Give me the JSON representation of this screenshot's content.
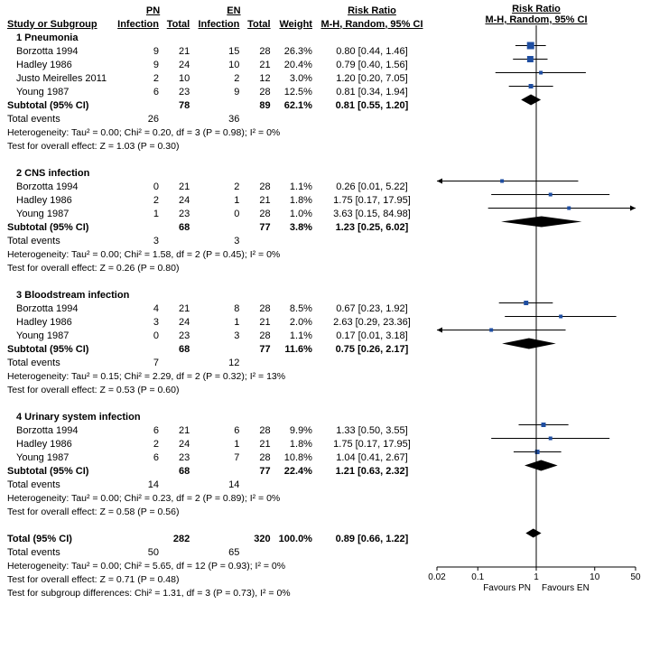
{
  "plot": {
    "xmin_log": -1.698970004,
    "xmax_log": 1.698970004,
    "ticks": [
      0.02,
      0.1,
      1,
      10,
      50
    ],
    "left_label": "Favours PN",
    "right_label": "Favours EN",
    "marker_color": "#1f4ea1",
    "diamond_color": "#000000",
    "line_color": "#000000"
  },
  "headers": {
    "study": "Study or Subgroup",
    "pn": "PN",
    "en": "EN",
    "inf": "Infection",
    "tot": "Total",
    "weight": "Weight",
    "rr": "Risk Ratio",
    "mh": "M-H, Random, 95% CI"
  },
  "groups": [
    {
      "title": "1 Pneumonia",
      "rows": [
        {
          "name": "Borzotta 1994",
          "pi": "9",
          "pt": "21",
          "ei": "15",
          "et": "28",
          "w": "26.3%",
          "rr": "0.80 [0.44, 1.46]",
          "pt_rr": 0.8,
          "lo": 0.44,
          "hi": 1.46,
          "ms": 8
        },
        {
          "name": "Hadley 1986",
          "pi": "9",
          "pt": "24",
          "ei": "10",
          "et": "21",
          "w": "20.4%",
          "rr": "0.79 [0.40, 1.56]",
          "pt_rr": 0.79,
          "lo": 0.4,
          "hi": 1.56,
          "ms": 7
        },
        {
          "name": "Justo Meirelles 2011",
          "pi": "2",
          "pt": "10",
          "ei": "2",
          "et": "12",
          "w": "3.0%",
          "rr": "1.20 [0.20, 7.05]",
          "pt_rr": 1.2,
          "lo": 0.2,
          "hi": 7.05,
          "ms": 4
        },
        {
          "name": "Young 1987",
          "pi": "6",
          "pt": "23",
          "ei": "9",
          "et": "28",
          "w": "12.5%",
          "rr": "0.81 [0.34, 1.94]",
          "pt_rr": 0.81,
          "lo": 0.34,
          "hi": 1.94,
          "ms": 5
        }
      ],
      "subtotal": {
        "label": "Subtotal (95% CI)",
        "pt": "78",
        "et": "89",
        "w": "62.1%",
        "rr": "0.81 [0.55, 1.20]",
        "pt_rr": 0.81,
        "lo": 0.55,
        "hi": 1.2
      },
      "events": {
        "label": "Total events",
        "pe": "26",
        "ee": "36"
      },
      "het": "Heterogeneity: Tau² = 0.00; Chi² = 0.20, df = 3 (P = 0.98); I² = 0%",
      "eff": "Test for overall effect: Z = 1.03 (P = 0.30)"
    },
    {
      "title": "2 CNS infection",
      "rows": [
        {
          "name": "Borzotta 1994",
          "pi": "0",
          "pt": "21",
          "ei": "2",
          "et": "28",
          "w": "1.1%",
          "rr": "0.26 [0.01, 5.22]",
          "pt_rr": 0.26,
          "lo": 0.01,
          "hi": 5.22,
          "ms": 4,
          "arrowL": true
        },
        {
          "name": "Hadley 1986",
          "pi": "2",
          "pt": "24",
          "ei": "1",
          "et": "21",
          "w": "1.8%",
          "rr": "1.75 [0.17, 17.95]",
          "pt_rr": 1.75,
          "lo": 0.17,
          "hi": 17.95,
          "ms": 4
        },
        {
          "name": "Young 1987",
          "pi": "1",
          "pt": "23",
          "ei": "0",
          "et": "28",
          "w": "1.0%",
          "rr": "3.63 [0.15, 84.98]",
          "pt_rr": 3.63,
          "lo": 0.15,
          "hi": 84.98,
          "ms": 4,
          "arrowR": true
        }
      ],
      "subtotal": {
        "label": "Subtotal (95% CI)",
        "pt": "68",
        "et": "77",
        "w": "3.8%",
        "rr": "1.23 [0.25, 6.02]",
        "pt_rr": 1.23,
        "lo": 0.25,
        "hi": 6.02
      },
      "events": {
        "label": "Total events",
        "pe": "3",
        "ee": "3"
      },
      "het": "Heterogeneity: Tau² = 0.00; Chi² = 1.58, df = 2 (P = 0.45); I² = 0%",
      "eff": "Test for overall effect: Z = 0.26 (P = 0.80)"
    },
    {
      "title": "3 Bloodstream infection",
      "rows": [
        {
          "name": "Borzotta 1994",
          "pi": "4",
          "pt": "21",
          "ei": "8",
          "et": "28",
          "w": "8.5%",
          "rr": "0.67 [0.23, 1.92]",
          "pt_rr": 0.67,
          "lo": 0.23,
          "hi": 1.92,
          "ms": 5
        },
        {
          "name": "Hadley 1986",
          "pi": "3",
          "pt": "24",
          "ei": "1",
          "et": "21",
          "w": "2.0%",
          "rr": "2.63 [0.29, 23.36]",
          "pt_rr": 2.63,
          "lo": 0.29,
          "hi": 23.36,
          "ms": 4
        },
        {
          "name": "Young 1987",
          "pi": "0",
          "pt": "23",
          "ei": "3",
          "et": "28",
          "w": "1.1%",
          "rr": "0.17 [0.01, 3.18]",
          "pt_rr": 0.17,
          "lo": 0.01,
          "hi": 3.18,
          "ms": 4,
          "arrowL": true
        }
      ],
      "subtotal": {
        "label": "Subtotal (95% CI)",
        "pt": "68",
        "et": "77",
        "w": "11.6%",
        "rr": "0.75 [0.26, 2.17]",
        "pt_rr": 0.75,
        "lo": 0.26,
        "hi": 2.17
      },
      "events": {
        "label": "Total events",
        "pe": "7",
        "ee": "12"
      },
      "het": "Heterogeneity: Tau² = 0.15; Chi² = 2.29, df = 2 (P = 0.32); I² = 13%",
      "eff": "Test for overall effect: Z = 0.53 (P = 0.60)"
    },
    {
      "title": "4 Urinary system infection",
      "rows": [
        {
          "name": "Borzotta 1994",
          "pi": "6",
          "pt": "21",
          "ei": "6",
          "et": "28",
          "w": "9.9%",
          "rr": "1.33 [0.50, 3.55]",
          "pt_rr": 1.33,
          "lo": 0.5,
          "hi": 3.55,
          "ms": 5
        },
        {
          "name": "Hadley 1986",
          "pi": "2",
          "pt": "24",
          "ei": "1",
          "et": "21",
          "w": "1.8%",
          "rr": "1.75 [0.17, 17.95]",
          "pt_rr": 1.75,
          "lo": 0.17,
          "hi": 17.95,
          "ms": 4
        },
        {
          "name": "Young 1987",
          "pi": "6",
          "pt": "23",
          "ei": "7",
          "et": "28",
          "w": "10.8%",
          "rr": "1.04 [0.41, 2.67]",
          "pt_rr": 1.04,
          "lo": 0.41,
          "hi": 2.67,
          "ms": 5
        }
      ],
      "subtotal": {
        "label": "Subtotal (95% CI)",
        "pt": "68",
        "et": "77",
        "w": "22.4%",
        "rr": "1.21 [0.63, 2.32]",
        "pt_rr": 1.21,
        "lo": 0.63,
        "hi": 2.32
      },
      "events": {
        "label": "Total events",
        "pe": "14",
        "ee": "14"
      },
      "het": "Heterogeneity: Tau² = 0.00; Chi² = 0.23, df = 2 (P = 0.89); I² = 0%",
      "eff": "Test for overall effect: Z = 0.58 (P = 0.56)"
    }
  ],
  "total": {
    "label": "Total (95% CI)",
    "pt": "282",
    "et": "320",
    "w": "100.0%",
    "rr": "0.89 [0.66, 1.22]",
    "pt_rr": 0.89,
    "lo": 0.66,
    "hi": 1.22,
    "events": {
      "label": "Total events",
      "pe": "50",
      "ee": "65"
    },
    "het": "Heterogeneity: Tau² = 0.00; Chi² = 5.65, df = 12 (P = 0.93); I² = 0%",
    "eff": "Test for overall effect: Z = 0.71 (P = 0.48)",
    "sub": "Test for subgroup differences: Chi² = 1.31, df = 3 (P = 0.73), I² = 0%"
  }
}
